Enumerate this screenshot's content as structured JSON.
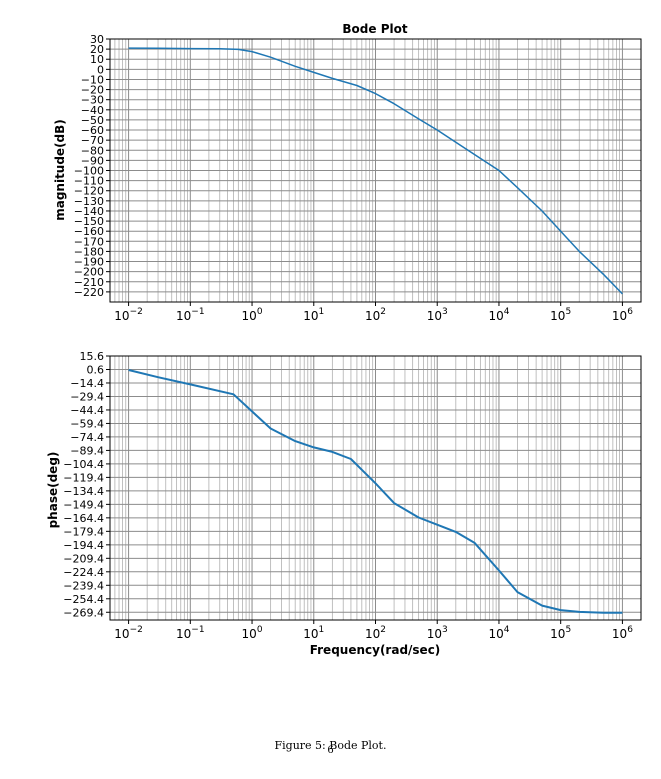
{
  "figure": {
    "caption": "Figure 5: Bode Plot.",
    "page_number": "6"
  },
  "chart_data": [
    {
      "type": "line",
      "title": "Bode Plot",
      "xlabel": "",
      "ylabel": "magnitude(dB)",
      "x_scale": "log",
      "xlim": [
        0.005,
        2000000
      ],
      "ylim": [
        -230,
        30
      ],
      "x_ticks": [
        0.01,
        0.1,
        1,
        10,
        100,
        1000,
        10000,
        100000,
        1000000
      ],
      "x_tick_exponents": [
        "−2",
        "−1",
        "0",
        "1",
        "2",
        "3",
        "4",
        "5",
        "6"
      ],
      "y_ticks": [
        30,
        20,
        10,
        0,
        -10,
        -20,
        -30,
        -40,
        -50,
        -60,
        -70,
        -80,
        -90,
        -100,
        -110,
        -120,
        -130,
        -140,
        -150,
        -160,
        -170,
        -180,
        -190,
        -200,
        -210,
        -220
      ],
      "grid": true,
      "line_color": "#1f77b4",
      "series": [
        {
          "x": [
            0.01,
            0.03,
            0.1,
            0.3,
            0.6,
            1,
            2,
            5,
            10,
            20,
            50,
            100,
            200,
            500,
            1000,
            2000,
            5000,
            10000,
            20000,
            50000,
            100000,
            200000,
            500000,
            1000000
          ],
          "y": [
            21,
            20.8,
            20.5,
            20.3,
            19.7,
            17.5,
            12,
            3,
            -3,
            -9,
            -16,
            -24,
            -34,
            -49,
            -60,
            -72,
            -88,
            -100,
            -117,
            -140,
            -160,
            -180,
            -203,
            -222
          ]
        }
      ]
    },
    {
      "type": "line",
      "title": "",
      "xlabel": "Frequency(rad/sec)",
      "ylabel": "phase(deg)",
      "x_scale": "log",
      "xlim": [
        0.005,
        2000000
      ],
      "ylim": [
        -278,
        15.6
      ],
      "x_ticks": [
        0.01,
        0.1,
        1,
        10,
        100,
        1000,
        10000,
        100000,
        1000000
      ],
      "x_tick_exponents": [
        "−2",
        "−1",
        "0",
        "1",
        "2",
        "3",
        "4",
        "5",
        "6"
      ],
      "y_ticks": [
        "15.6",
        "0.6",
        "−14.4",
        "−29.4",
        "−44.4",
        "−59.4",
        "−74.4",
        "−89.4",
        "−104.4",
        "−119.4",
        "−134.4",
        "−149.4",
        "−164.4",
        "−179.4",
        "−194.4",
        "−209.4",
        "−224.4",
        "−239.4",
        "−254.4",
        "−269.4"
      ],
      "grid": true,
      "line_color": "#1f77b4",
      "series": [
        {
          "x": [
            0.01,
            0.03,
            0.1,
            0.5,
            1,
            2,
            5,
            10,
            20,
            40,
            100,
            200,
            500,
            1000,
            2000,
            4000,
            10000,
            20000,
            50000,
            100000,
            200000,
            500000,
            1000000
          ],
          "y": [
            0,
            -8,
            -16,
            -27,
            -46,
            -65,
            -79,
            -86,
            -91,
            -99,
            -126,
            -148,
            -164,
            -172,
            -180,
            -192,
            -223,
            -247,
            -262,
            -267,
            -269,
            -270,
            -270
          ]
        }
      ]
    }
  ]
}
